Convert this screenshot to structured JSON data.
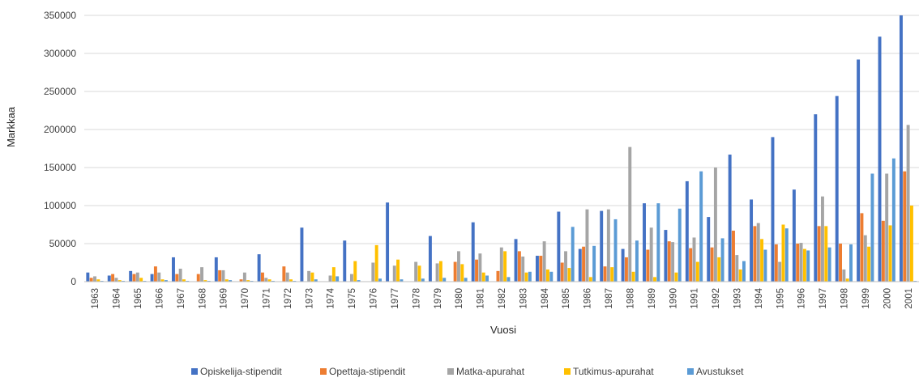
{
  "chart_data": {
    "type": "bar",
    "title": "",
    "xlabel": "Vuosi",
    "ylabel": "Markkaa",
    "ylim": [
      0,
      350000
    ],
    "yticks": [
      0,
      50000,
      100000,
      150000,
      200000,
      250000,
      300000,
      350000
    ],
    "ytick_labels": [
      "0",
      "50000",
      "100000",
      "150000",
      "200000",
      "250000",
      "300000",
      "350000"
    ],
    "grid": "horizontal",
    "legend_position": "bottom",
    "categories": [
      "1963",
      "1964",
      "1965",
      "1966",
      "1967",
      "1968",
      "1969",
      "1970",
      "1971",
      "1972",
      "1973",
      "1974",
      "1975",
      "1976",
      "1977",
      "1978",
      "1979",
      "1980",
      "1981",
      "1982",
      "1983",
      "1984",
      "1985",
      "1986",
      "1987",
      "1988",
      "1989",
      "1990",
      "1991",
      "1992",
      "1993",
      "1994",
      "1995",
      "1996",
      "1997",
      "1998",
      "1999",
      "2000",
      "2001"
    ],
    "series": [
      {
        "name": "Opiskelija-stipendit",
        "color": "#4472C4",
        "values": [
          12000,
          8000,
          14000,
          10000,
          32000,
          0,
          32000,
          0,
          36000,
          0,
          71000,
          0,
          54000,
          0,
          104000,
          0,
          60000,
          0,
          78000,
          0,
          56000,
          34000,
          92000,
          43000,
          93000,
          43000,
          103000,
          68000,
          132000,
          85000,
          167000,
          108000,
          190000,
          121000,
          220000,
          244000,
          292000,
          322000,
          350000
        ]
      },
      {
        "name": "Opettaja-stipendit",
        "color": "#ED7D31",
        "values": [
          5000,
          10000,
          10000,
          20000,
          10000,
          10000,
          15000,
          3000,
          12000,
          20000,
          0,
          0,
          0,
          0,
          0,
          0,
          0,
          26000,
          29000,
          14000,
          40000,
          34000,
          25000,
          46000,
          20000,
          32000,
          42000,
          53000,
          44000,
          45000,
          67000,
          73000,
          49000,
          50000,
          73000,
          50000,
          90000,
          80000,
          145000
        ]
      },
      {
        "name": "Matka-apurahat",
        "color": "#A5A5A5",
        "values": [
          7000,
          5000,
          12000,
          12000,
          17000,
          19000,
          15000,
          12000,
          5000,
          12000,
          14000,
          8000,
          10000,
          25000,
          21000,
          26000,
          24000,
          40000,
          37000,
          45000,
          33000,
          53000,
          40000,
          95000,
          95000,
          177000,
          71000,
          52000,
          58000,
          150000,
          35000,
          77000,
          26000,
          51000,
          112000,
          16000,
          61000,
          142000,
          206000
        ]
      },
      {
        "name": "Tutkimus-apurahat",
        "color": "#FFC000",
        "values": [
          3000,
          2000,
          5000,
          3000,
          3000,
          2000,
          3000,
          2000,
          3000,
          3000,
          12000,
          19000,
          27000,
          48000,
          29000,
          21000,
          27000,
          23000,
          12000,
          40000,
          12000,
          16000,
          18000,
          6000,
          19000,
          13000,
          6000,
          12000,
          26000,
          32000,
          16000,
          56000,
          75000,
          43000,
          73000,
          4000,
          46000,
          74000,
          100000
        ]
      },
      {
        "name": "Avustukset",
        "color": "#5B9BD5",
        "values": [
          1000,
          1000,
          1000,
          2000,
          1000,
          1000,
          2000,
          1000,
          1000,
          1000,
          3000,
          7000,
          2000,
          4000,
          3000,
          4000,
          5000,
          5000,
          8000,
          6000,
          13000,
          13000,
          72000,
          47000,
          82000,
          54000,
          103000,
          96000,
          145000,
          57000,
          27000,
          42000,
          70000,
          41000,
          45000,
          49000,
          142000,
          162000,
          1000
        ]
      }
    ]
  }
}
